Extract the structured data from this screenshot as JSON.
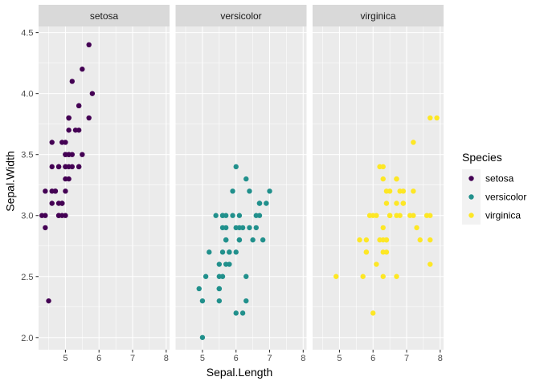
{
  "chart_data": {
    "type": "scatter",
    "xlabel": "Sepal.Length",
    "ylabel": "Sepal.Width",
    "xlim": [
      4.2,
      8.1
    ],
    "ylim": [
      1.9,
      4.55
    ],
    "x_ticks": [
      5,
      6,
      7,
      8
    ],
    "y_ticks": [
      2.0,
      2.5,
      3.0,
      3.5,
      4.0,
      4.5
    ],
    "y_tick_labels": [
      "2.0",
      "2.5",
      "3.0",
      "3.5",
      "4.0",
      "4.5"
    ],
    "grid": true,
    "facet_by": "Species",
    "legend": {
      "title": "Species",
      "position": "right",
      "entries": [
        "setosa",
        "versicolor",
        "virginica"
      ]
    },
    "colors": {
      "setosa": "#440154",
      "versicolor": "#21908C",
      "virginica": "#FDE725",
      "panel_background": "#EBEBEB",
      "strip_background": "#D9D9D9",
      "grid": "#FFFFFF"
    },
    "series": [
      {
        "name": "setosa",
        "points": [
          [
            5.1,
            3.5
          ],
          [
            4.9,
            3.0
          ],
          [
            4.7,
            3.2
          ],
          [
            4.6,
            3.1
          ],
          [
            5.0,
            3.6
          ],
          [
            5.4,
            3.9
          ],
          [
            4.6,
            3.4
          ],
          [
            5.0,
            3.4
          ],
          [
            4.4,
            2.9
          ],
          [
            4.9,
            3.1
          ],
          [
            5.4,
            3.7
          ],
          [
            4.8,
            3.4
          ],
          [
            4.8,
            3.0
          ],
          [
            4.3,
            3.0
          ],
          [
            5.8,
            4.0
          ],
          [
            5.7,
            4.4
          ],
          [
            5.4,
            3.9
          ],
          [
            5.1,
            3.5
          ],
          [
            5.7,
            3.8
          ],
          [
            5.1,
            3.8
          ],
          [
            5.4,
            3.4
          ],
          [
            5.1,
            3.7
          ],
          [
            4.6,
            3.6
          ],
          [
            5.1,
            3.3
          ],
          [
            4.8,
            3.4
          ],
          [
            5.0,
            3.0
          ],
          [
            5.0,
            3.4
          ],
          [
            5.2,
            3.5
          ],
          [
            5.2,
            3.4
          ],
          [
            4.7,
            3.2
          ],
          [
            4.8,
            3.1
          ],
          [
            5.4,
            3.4
          ],
          [
            5.2,
            4.1
          ],
          [
            5.5,
            4.2
          ],
          [
            4.9,
            3.1
          ],
          [
            5.0,
            3.2
          ],
          [
            5.5,
            3.5
          ],
          [
            4.9,
            3.6
          ],
          [
            4.4,
            3.0
          ],
          [
            5.1,
            3.4
          ],
          [
            5.0,
            3.5
          ],
          [
            4.5,
            2.3
          ],
          [
            4.4,
            3.2
          ],
          [
            5.0,
            3.5
          ],
          [
            5.1,
            3.8
          ],
          [
            4.8,
            3.0
          ],
          [
            5.1,
            3.8
          ],
          [
            4.6,
            3.2
          ],
          [
            5.3,
            3.7
          ],
          [
            5.0,
            3.3
          ]
        ]
      },
      {
        "name": "versicolor",
        "points": [
          [
            7.0,
            3.2
          ],
          [
            6.4,
            3.2
          ],
          [
            6.9,
            3.1
          ],
          [
            5.5,
            2.3
          ],
          [
            6.5,
            2.8
          ],
          [
            5.7,
            2.8
          ],
          [
            6.3,
            3.3
          ],
          [
            4.9,
            2.4
          ],
          [
            6.6,
            2.9
          ],
          [
            5.2,
            2.7
          ],
          [
            5.0,
            2.0
          ],
          [
            5.9,
            3.0
          ],
          [
            6.0,
            2.2
          ],
          [
            6.1,
            2.9
          ],
          [
            5.6,
            2.9
          ],
          [
            6.7,
            3.1
          ],
          [
            5.6,
            3.0
          ],
          [
            5.8,
            2.7
          ],
          [
            6.2,
            2.2
          ],
          [
            5.6,
            2.5
          ],
          [
            5.9,
            3.2
          ],
          [
            6.1,
            2.8
          ],
          [
            6.3,
            2.5
          ],
          [
            6.1,
            2.8
          ],
          [
            6.4,
            2.9
          ],
          [
            6.6,
            3.0
          ],
          [
            6.8,
            2.8
          ],
          [
            6.7,
            3.0
          ],
          [
            6.0,
            2.9
          ],
          [
            5.7,
            2.6
          ],
          [
            5.5,
            2.4
          ],
          [
            5.5,
            2.4
          ],
          [
            5.8,
            2.7
          ],
          [
            6.0,
            2.7
          ],
          [
            5.4,
            3.0
          ],
          [
            6.0,
            3.4
          ],
          [
            6.7,
            3.1
          ],
          [
            6.3,
            2.3
          ],
          [
            5.6,
            3.0
          ],
          [
            5.5,
            2.5
          ],
          [
            5.5,
            2.6
          ],
          [
            6.1,
            3.0
          ],
          [
            5.8,
            2.6
          ],
          [
            5.0,
            2.3
          ],
          [
            5.6,
            2.7
          ],
          [
            5.7,
            3.0
          ],
          [
            5.7,
            2.9
          ],
          [
            6.2,
            2.9
          ],
          [
            5.1,
            2.5
          ],
          [
            5.7,
            2.8
          ]
        ]
      },
      {
        "name": "virginica",
        "points": [
          [
            6.3,
            3.3
          ],
          [
            5.8,
            2.7
          ],
          [
            7.1,
            3.0
          ],
          [
            6.3,
            2.9
          ],
          [
            6.5,
            3.0
          ],
          [
            7.6,
            3.0
          ],
          [
            4.9,
            2.5
          ],
          [
            7.3,
            2.9
          ],
          [
            6.7,
            2.5
          ],
          [
            7.2,
            3.6
          ],
          [
            6.5,
            3.2
          ],
          [
            6.4,
            2.7
          ],
          [
            6.8,
            3.0
          ],
          [
            5.7,
            2.5
          ],
          [
            5.8,
            2.8
          ],
          [
            6.4,
            3.2
          ],
          [
            6.5,
            3.0
          ],
          [
            7.7,
            3.8
          ],
          [
            7.7,
            2.6
          ],
          [
            6.0,
            2.2
          ],
          [
            6.9,
            3.2
          ],
          [
            5.6,
            2.8
          ],
          [
            7.7,
            2.8
          ],
          [
            6.3,
            2.7
          ],
          [
            6.7,
            3.3
          ],
          [
            7.2,
            3.2
          ],
          [
            6.2,
            2.8
          ],
          [
            6.1,
            3.0
          ],
          [
            6.4,
            2.8
          ],
          [
            7.2,
            3.0
          ],
          [
            7.4,
            2.8
          ],
          [
            7.9,
            3.8
          ],
          [
            6.4,
            2.8
          ],
          [
            6.3,
            2.8
          ],
          [
            6.1,
            2.6
          ],
          [
            7.7,
            3.0
          ],
          [
            6.3,
            3.4
          ],
          [
            6.4,
            3.1
          ],
          [
            6.0,
            3.0
          ],
          [
            6.9,
            3.1
          ],
          [
            6.7,
            3.1
          ],
          [
            6.9,
            3.1
          ],
          [
            5.8,
            2.7
          ],
          [
            6.8,
            3.2
          ],
          [
            6.7,
            3.3
          ],
          [
            6.7,
            3.0
          ],
          [
            6.3,
            2.5
          ],
          [
            6.5,
            3.0
          ],
          [
            6.2,
            3.4
          ],
          [
            5.9,
            3.0
          ]
        ]
      }
    ]
  }
}
